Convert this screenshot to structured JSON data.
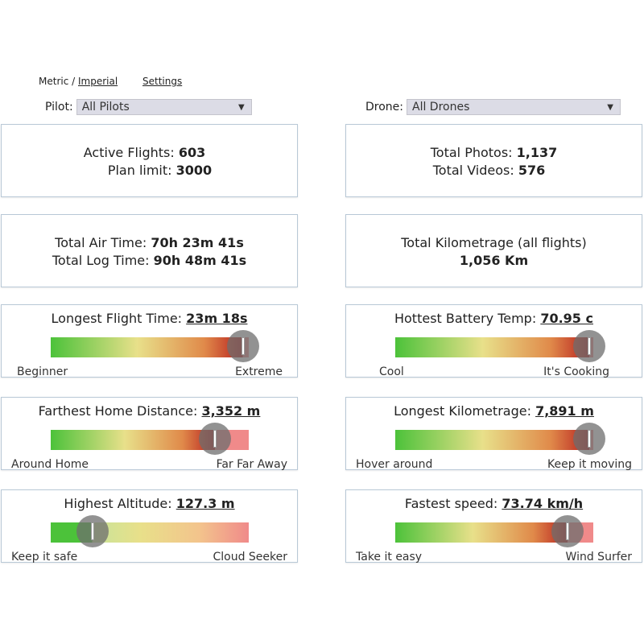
{
  "units": {
    "metric": "Metric",
    "sep": " / ",
    "imperial": "Imperial"
  },
  "settings_link": "Settings",
  "filters": {
    "pilot_label": "Pilot:",
    "pilot_value": "All Pilots",
    "drone_label": "Drone:",
    "drone_value": "All Drones"
  },
  "stats": {
    "active_flights_label": "Active Flights:",
    "active_flights": "603",
    "plan_limit_label": "Plan limit:",
    "plan_limit": "3000",
    "total_photos_label": "Total Photos:",
    "total_photos": "1,137",
    "total_videos_label": "Total Videos:",
    "total_videos": "576",
    "air_time_label": "Total Air Time:",
    "air_time": "70h 23m 41s",
    "log_time_label": "Total Log Time:",
    "log_time": "90h 48m 41s",
    "km_label": "Total Kilometrage (all flights)",
    "km_value": "1,056 Km"
  },
  "gauges": [
    {
      "id": "longest-flight",
      "title": "Longest Flight Time:",
      "value": "23m 18s",
      "level": 0.97,
      "left_label": "Beginner",
      "right_label": "Extreme"
    },
    {
      "id": "hottest-battery",
      "title": "Hottest Battery Temp:",
      "value": "70.95 c",
      "level": 0.98,
      "left_label": "Cool",
      "right_label": "It's Cooking"
    },
    {
      "id": "farthest-home",
      "title": "Farthest Home Distance:",
      "value": "3,352 m",
      "level": 0.83,
      "left_label": "Around Home",
      "right_label": "Far Far Away"
    },
    {
      "id": "longest-km",
      "title": "Longest Kilometrage:",
      "value": "7,891 m",
      "level": 0.98,
      "left_label": "Hover around",
      "right_label": "Keep it moving"
    },
    {
      "id": "highest-altitude",
      "title": "Highest Altitude:",
      "value": "127.3 m",
      "level": 0.21,
      "left_label": "Keep it safe",
      "right_label": "Cloud Seeker"
    },
    {
      "id": "fastest-speed",
      "title": "Fastest speed:",
      "value": "73.74 km/h",
      "level": 0.87,
      "left_label": "Take it easy",
      "right_label": "Wind Surfer"
    }
  ],
  "colors": {
    "green": "#4cc23a",
    "yellow": "#e8e08a",
    "red": "#b81f1f",
    "pink": "#f08a8a",
    "border": "#b8c8d6"
  }
}
